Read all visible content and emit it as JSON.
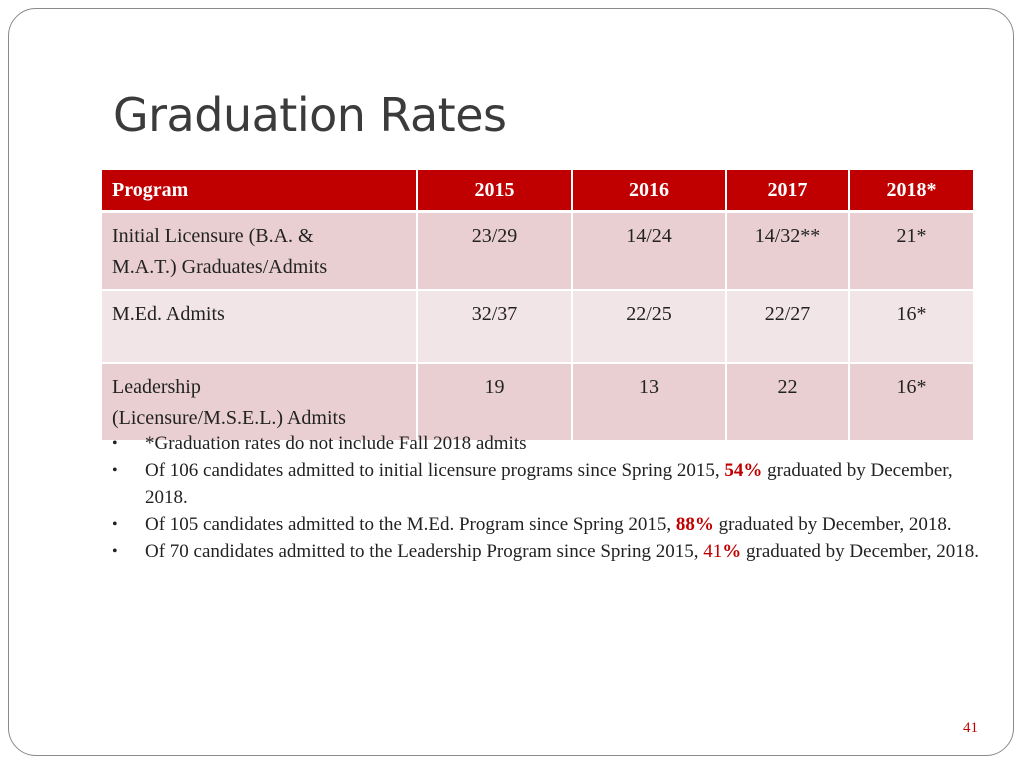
{
  "slide": {
    "title": "Graduation Rates",
    "page_number": "41"
  },
  "table": {
    "headers": [
      "Program",
      "2015",
      "2016",
      "2017",
      "2018*"
    ],
    "rows": [
      {
        "program_line1": "Initial Licensure (B.A. &",
        "program_line2": "M.A.T.) Graduates/Admits",
        "y2015": "23/29",
        "y2016": "14/24",
        "y2017": "14/32**",
        "y2018": "21*"
      },
      {
        "program_line1": "M.Ed. Admits",
        "program_line2": "",
        "y2015": "32/37",
        "y2016": "22/25",
        "y2017": "22/27",
        "y2018": "16*"
      },
      {
        "program_line1": "Leadership",
        "program_line2": "(Licensure/M.S.E.L.) Admits",
        "y2015": "19",
        "y2016": "13",
        "y2017": "22",
        "y2018": "16*"
      }
    ]
  },
  "notes": [
    {
      "text": "*Graduation rates do not include Fall 2018 admits"
    },
    {
      "before": "Of 106 candidates admitted to initial licensure programs since Spring 2015, ",
      "pct": "54%",
      "after": " graduated by December, 2018."
    },
    {
      "before": "Of 105 candidates admitted to the M.Ed. Program since Spring 2015, ",
      "pct": "88%",
      "after": " graduated by December, 2018."
    },
    {
      "before": "Of 70 candidates admitted to the Leadership Program since Spring 2015, ",
      "pct_num": "41",
      "pct_sign": "%",
      "after": " graduated by December, 2018."
    }
  ],
  "colors": {
    "accent": "#c00000",
    "row_dark": "#e9cfd2",
    "row_light": "#f2e5e7"
  }
}
